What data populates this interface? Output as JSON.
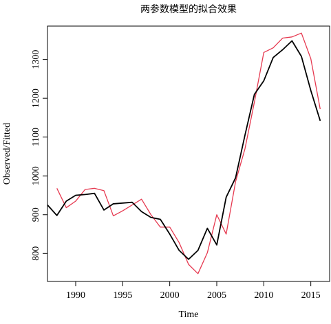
{
  "chart_data": {
    "type": "line",
    "title": "两参数模型的拟合效果",
    "xlabel": "Time",
    "ylabel": "Observed/Fitted",
    "xlim": [
      1987,
      2017
    ],
    "ylim": [
      728,
      1386
    ],
    "x_ticks": [
      1990,
      1995,
      2000,
      2005,
      2010,
      2015
    ],
    "y_ticks": [
      800,
      900,
      1000,
      1100,
      1200,
      1300
    ],
    "grid": false,
    "legend": false,
    "series": [
      {
        "color": "#000000",
        "x": [
          1987,
          1988,
          1989,
          1990,
          1991,
          1992,
          1993,
          1994,
          1995,
          1996,
          1997,
          1998,
          1999,
          2000,
          2001,
          2002,
          2003,
          2004,
          2005,
          2006,
          2007,
          2008,
          2009,
          2010,
          2011,
          2012,
          2013,
          2014,
          2015,
          2016
        ],
        "values": [
          925,
          898,
          935,
          950,
          952,
          955,
          912,
          928,
          930,
          932,
          908,
          893,
          888,
          850,
          808,
          785,
          808,
          865,
          822,
          945,
          995,
          1105,
          1210,
          1245,
          1305,
          1325,
          1348,
          1308,
          1220,
          1142
        ]
      },
      {
        "color": "#e63950",
        "x": [
          1988,
          1989,
          1990,
          1991,
          1992,
          1993,
          1994,
          1995,
          1996,
          1997,
          1998,
          1999,
          2000,
          2001,
          2002,
          2003,
          2004,
          2005,
          2006,
          2007,
          2008,
          2009,
          2010,
          2011,
          2012,
          2013,
          2014,
          2015,
          2016
        ],
        "values": [
          968,
          918,
          935,
          965,
          968,
          962,
          897,
          910,
          925,
          940,
          900,
          868,
          868,
          828,
          772,
          748,
          802,
          900,
          850,
          985,
          1070,
          1190,
          1318,
          1330,
          1355,
          1358,
          1368,
          1302,
          1172
        ]
      }
    ]
  }
}
